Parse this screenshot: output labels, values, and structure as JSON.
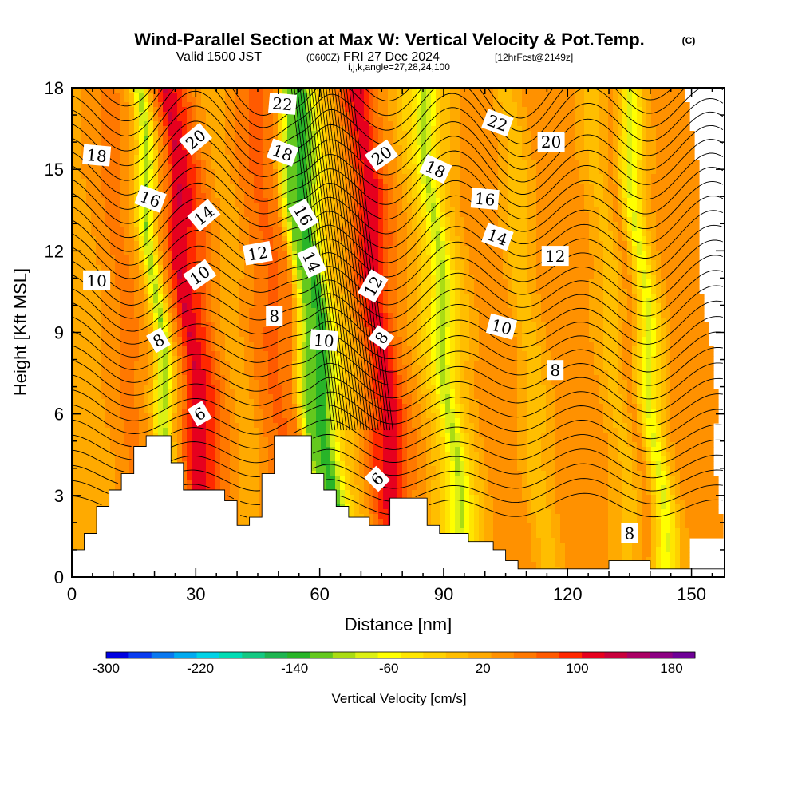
{
  "title": {
    "main": "Wind-Parallel Section at Max W: Vertical Velocity & Pot.Temp.",
    "copyright": "(C)",
    "valid_prefix": "Valid 1500 JST",
    "valid_utc": "(0600Z)",
    "valid_date": "FRI 27 Dec 2024",
    "forecast": "[12hrFcst@2149z]",
    "ijk": "i,j,k,angle=27,28,24,100"
  },
  "chart_data": {
    "type": "heatmap",
    "xlabel": "Distance [nm]",
    "ylabel": "Height [Kft MSL]",
    "xlim": [
      0,
      158
    ],
    "ylim": [
      0,
      18
    ],
    "x_ticks": [
      0,
      30,
      60,
      90,
      120,
      150
    ],
    "y_ticks": [
      0,
      3,
      6,
      9,
      12,
      15,
      18
    ],
    "colorbar": {
      "title": "Vertical Velocity [cm/s]",
      "tick_labels": [
        "-300",
        "-220",
        "-140",
        "-60",
        "20",
        "100",
        "180"
      ],
      "tick_values": [
        -300,
        -220,
        -140,
        -60,
        20,
        100,
        180
      ],
      "range": [
        -300,
        200
      ],
      "colors": [
        "#0000e0",
        "#0a3cf0",
        "#0a78f0",
        "#00aaf0",
        "#00d2e6",
        "#00dcb4",
        "#14c882",
        "#1eb450",
        "#28b428",
        "#64c81e",
        "#aadc14",
        "#dcf014",
        "#ffff00",
        "#ffe600",
        "#ffd200",
        "#ffbe00",
        "#ffaa00",
        "#ff9100",
        "#ff7800",
        "#ff5a00",
        "#ff2800",
        "#e6001e",
        "#c8003c",
        "#aa0064",
        "#8c0082",
        "#6e0096"
      ]
    },
    "vertical_velocity_bands": [
      {
        "x": 0,
        "value": 25
      },
      {
        "x": 4,
        "value": 10
      },
      {
        "x": 9,
        "value": 40
      },
      {
        "x": 14,
        "value": 55
      },
      {
        "x": 18,
        "value": 20
      },
      {
        "x": 21,
        "value": -110
      },
      {
        "x": 24,
        "value": 30
      },
      {
        "x": 28,
        "value": 125
      },
      {
        "x": 32,
        "value": 90
      },
      {
        "x": 36,
        "value": 35
      },
      {
        "x": 40,
        "value": 10
      },
      {
        "x": 44,
        "value": 45
      },
      {
        "x": 49,
        "value": 75
      },
      {
        "x": 53,
        "value": 45
      },
      {
        "x": 56,
        "value": -110
      },
      {
        "x": 60,
        "value": -140
      },
      {
        "x": 64,
        "value": -20
      },
      {
        "x": 68,
        "value": 25
      },
      {
        "x": 72,
        "value": 95
      },
      {
        "x": 75,
        "value": 120
      },
      {
        "x": 79,
        "value": 55
      },
      {
        "x": 83,
        "value": 20
      },
      {
        "x": 87,
        "value": -30
      },
      {
        "x": 90,
        "value": -100
      },
      {
        "x": 93,
        "value": -20
      },
      {
        "x": 97,
        "value": 25
      },
      {
        "x": 102,
        "value": 45
      },
      {
        "x": 106,
        "value": 30
      },
      {
        "x": 110,
        "value": -10
      },
      {
        "x": 115,
        "value": 30
      },
      {
        "x": 120,
        "value": 45
      },
      {
        "x": 126,
        "value": 30
      },
      {
        "x": 131,
        "value": -5
      },
      {
        "x": 135,
        "value": 40
      },
      {
        "x": 139,
        "value": -80
      },
      {
        "x": 143,
        "value": 20
      },
      {
        "x": 147,
        "value": 45
      },
      {
        "x": 152,
        "value": 30
      },
      {
        "x": 158,
        "value": 20
      }
    ],
    "terrain": [
      [
        0,
        1.0
      ],
      [
        3,
        1.0
      ],
      [
        3,
        1.6
      ],
      [
        6,
        1.6
      ],
      [
        6,
        2.6
      ],
      [
        9,
        2.6
      ],
      [
        9,
        3.2
      ],
      [
        12,
        3.2
      ],
      [
        12,
        3.8
      ],
      [
        15,
        3.8
      ],
      [
        15,
        4.8
      ],
      [
        18,
        4.8
      ],
      [
        18,
        5.2
      ],
      [
        24,
        5.2
      ],
      [
        24,
        4.2
      ],
      [
        27,
        4.2
      ],
      [
        27,
        3.2
      ],
      [
        37,
        3.2
      ],
      [
        37,
        2.8
      ],
      [
        40,
        2.8
      ],
      [
        40,
        1.9
      ],
      [
        43,
        1.9
      ],
      [
        43,
        2.2
      ],
      [
        46,
        2.2
      ],
      [
        46,
        3.8
      ],
      [
        49,
        3.8
      ],
      [
        49,
        5.2
      ],
      [
        58,
        5.2
      ],
      [
        58,
        3.8
      ],
      [
        61,
        3.8
      ],
      [
        61,
        3.2
      ],
      [
        64,
        3.2
      ],
      [
        64,
        2.6
      ],
      [
        67,
        2.6
      ],
      [
        67,
        2.2
      ],
      [
        72,
        2.2
      ],
      [
        72,
        1.9
      ],
      [
        77,
        1.9
      ],
      [
        77,
        2.9
      ],
      [
        86,
        2.9
      ],
      [
        86,
        1.9
      ],
      [
        89,
        1.9
      ],
      [
        89,
        1.6
      ],
      [
        96,
        1.6
      ],
      [
        96,
        1.3
      ],
      [
        102,
        1.3
      ],
      [
        102,
        1.0
      ],
      [
        105,
        1.0
      ],
      [
        105,
        0.6
      ],
      [
        108,
        0.6
      ],
      [
        108,
        0.3
      ],
      [
        130,
        0.3
      ],
      [
        130,
        0.6
      ],
      [
        140,
        0.6
      ],
      [
        140,
        0.3
      ],
      [
        158,
        0.3
      ],
      [
        158,
        0.0
      ]
    ],
    "contour_labels": [
      {
        "text": "22",
        "x": 51,
        "y": 17.4,
        "angle": 5
      },
      {
        "text": "22",
        "x": 103,
        "y": 16.7,
        "angle": 20
      },
      {
        "text": "20",
        "x": 30,
        "y": 16.1,
        "angle": -40
      },
      {
        "text": "20",
        "x": 75,
        "y": 15.5,
        "angle": -35
      },
      {
        "text": "20",
        "x": 116,
        "y": 16.0,
        "angle": 0
      },
      {
        "text": "18",
        "x": 6,
        "y": 15.5,
        "angle": 5
      },
      {
        "text": "18",
        "x": 51,
        "y": 15.6,
        "angle": 20
      },
      {
        "text": "18",
        "x": 88,
        "y": 15.0,
        "angle": 25
      },
      {
        "text": "16",
        "x": 19,
        "y": 13.9,
        "angle": 20
      },
      {
        "text": "16",
        "x": 56,
        "y": 13.3,
        "angle": 60
      },
      {
        "text": "16",
        "x": 100,
        "y": 13.9,
        "angle": 5
      },
      {
        "text": "14",
        "x": 32,
        "y": 13.3,
        "angle": -40
      },
      {
        "text": "14",
        "x": 58,
        "y": 11.6,
        "angle": 65
      },
      {
        "text": "14",
        "x": 103,
        "y": 12.5,
        "angle": 20
      },
      {
        "text": "12",
        "x": 45,
        "y": 11.9,
        "angle": -10
      },
      {
        "text": "12",
        "x": 73,
        "y": 10.7,
        "angle": -60
      },
      {
        "text": "12",
        "x": 117,
        "y": 11.8,
        "angle": 0
      },
      {
        "text": "10",
        "x": 6,
        "y": 10.9,
        "angle": 0
      },
      {
        "text": "10",
        "x": 31,
        "y": 11.1,
        "angle": -35
      },
      {
        "text": "10",
        "x": 61,
        "y": 8.7,
        "angle": 5
      },
      {
        "text": "10",
        "x": 104,
        "y": 9.2,
        "angle": 15
      },
      {
        "text": "8",
        "x": 49,
        "y": 9.6,
        "angle": 0
      },
      {
        "text": "8",
        "x": 21,
        "y": 8.7,
        "angle": -30
      },
      {
        "text": "8",
        "x": 75,
        "y": 8.8,
        "angle": -55
      },
      {
        "text": "8",
        "x": 117,
        "y": 7.6,
        "angle": 0
      },
      {
        "text": "8",
        "x": 135,
        "y": 1.6,
        "angle": 0
      },
      {
        "text": "6",
        "x": 31,
        "y": 6.0,
        "angle": -30
      },
      {
        "text": "6",
        "x": 74,
        "y": 3.6,
        "angle": -45
      }
    ]
  }
}
